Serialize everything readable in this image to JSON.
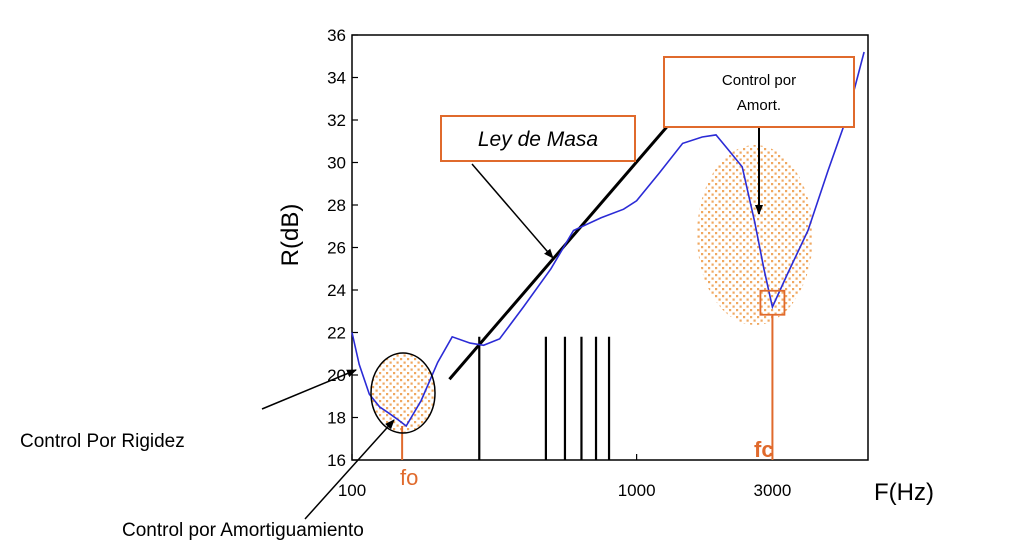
{
  "chart_data": {
    "type": "line",
    "xlabel": "F(Hz)",
    "ylabel": "R(dB)",
    "x_scale": "log",
    "xlim": [
      100,
      6500
    ],
    "ylim": [
      16,
      36
    ],
    "yticks": [
      16,
      18,
      20,
      22,
      24,
      26,
      28,
      30,
      32,
      34,
      36
    ],
    "xtick_labels": [
      {
        "value": 100,
        "label": "100"
      },
      {
        "value": 1000,
        "label": "1000"
      },
      {
        "value": 3000,
        "label": "3000"
      }
    ],
    "grid": false,
    "series": [
      {
        "color": "#2b2bd6",
        "x": [
          100,
          106,
          115,
          125,
          135,
          145,
          155,
          175,
          200,
          225,
          260,
          290,
          330,
          400,
          500,
          600,
          750,
          900,
          1000,
          1200,
          1450,
          1700,
          1900,
          2100,
          2350,
          2600,
          2800,
          3000,
          3400,
          4000,
          4700,
          5500,
          6300
        ],
        "y": [
          22.0,
          20.5,
          19.1,
          18.5,
          18.2,
          17.9,
          17.6,
          18.8,
          20.6,
          21.8,
          21.5,
          21.4,
          21.7,
          23.2,
          25.0,
          26.8,
          27.4,
          27.8,
          28.2,
          29.5,
          30.9,
          31.2,
          31.3,
          30.6,
          29.8,
          27.2,
          25.0,
          23.2,
          24.8,
          26.8,
          29.6,
          32.2,
          35.2
        ]
      }
    ],
    "mass_law_line": {
      "x": [
        220,
        1600
      ],
      "y": [
        19.8,
        33.2
      ],
      "color": "#000000"
    },
    "vertical_bars": {
      "x": [
        280,
        480,
        560,
        640,
        720,
        800
      ],
      "y_top": 21.8,
      "color": "#000000"
    },
    "markers": [
      {
        "label": "fo",
        "x": 150,
        "y": 17.6
      },
      {
        "label": "fc",
        "x": 3000,
        "y": 23.4
      }
    ],
    "annotations": {
      "mass_law": "Ley de Masa",
      "damping_box_line1": "Control por",
      "damping_box_line2": "Amort.",
      "stiffness": "Control Por Rigidez",
      "damping_low": "Control por Amortiguamiento"
    },
    "colors": {
      "curve": "#2b2bd6",
      "highlight": "#e06a2c",
      "stipple": "#f0a860"
    }
  }
}
